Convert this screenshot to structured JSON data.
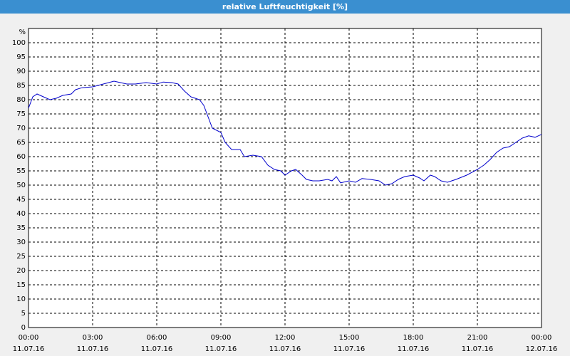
{
  "chart_data": {
    "type": "line",
    "title": "relative Luftfeuchtigkeit [%]",
    "y_label": "%",
    "x": [
      0,
      0.2,
      0.4,
      0.7,
      1,
      1.3,
      1.6,
      2,
      2.2,
      2.5,
      3,
      3.5,
      4,
      4.3,
      4.6,
      5,
      5.5,
      6,
      6.3,
      6.7,
      7,
      7.3,
      7.6,
      8,
      8.2,
      8.4,
      8.6,
      9,
      9.2,
      9.5,
      9.9,
      10.1,
      10.5,
      10.9,
      11.2,
      11.5,
      11.8,
      12,
      12.3,
      12.5,
      12.8,
      13,
      13.3,
      13.6,
      14,
      14.2,
      14.4,
      14.6,
      15,
      15.3,
      15.6,
      16,
      16.4,
      16.7,
      17,
      17.3,
      17.6,
      18,
      18.3,
      18.5,
      18.8,
      19,
      19.3,
      19.6,
      20,
      20.5,
      21,
      21.3,
      21.6,
      21.9,
      22.2,
      22.5,
      22.8,
      23.1,
      23.4,
      23.7,
      24
    ],
    "series": [
      {
        "color": "#0000cc",
        "values": [
          77,
          81,
          82,
          81,
          80,
          80.5,
          81.5,
          82,
          83.5,
          84.2,
          84.5,
          85.5,
          86.5,
          86,
          85.5,
          85.5,
          86,
          85.5,
          86.2,
          86,
          85.5,
          83,
          81,
          80,
          78,
          74,
          70,
          68.5,
          65,
          62.5,
          62.5,
          60,
          60.5,
          60,
          57,
          55.5,
          55,
          53.5,
          55,
          55.5,
          53.5,
          52,
          51.5,
          51.5,
          52,
          51.5,
          53,
          50.8,
          51.5,
          51,
          52.3,
          52,
          51.5,
          50,
          50.5,
          52,
          53,
          53.5,
          52.5,
          51.5,
          53.5,
          53,
          51.5,
          51,
          52,
          53.5,
          55.5,
          57,
          59,
          61.5,
          63,
          63.5,
          65,
          66.5,
          67.3,
          66.8,
          67.8
        ]
      }
    ],
    "xlim": [
      0,
      24
    ],
    "xticks": [
      {
        "value": 0,
        "label": "00:00",
        "date": "11.07.16"
      },
      {
        "value": 3,
        "label": "03:00",
        "date": "11.07.16"
      },
      {
        "value": 6,
        "label": "06:00",
        "date": "11.07.16"
      },
      {
        "value": 9,
        "label": "09:00",
        "date": "11.07.16"
      },
      {
        "value": 12,
        "label": "12:00",
        "date": "11.07.16"
      },
      {
        "value": 15,
        "label": "15:00",
        "date": "11.07.16"
      },
      {
        "value": 18,
        "label": "18:00",
        "date": "11.07.16"
      },
      {
        "value": 21,
        "label": "21:00",
        "date": "11.07.16"
      },
      {
        "value": 24,
        "label": "00:00",
        "date": "12.07.16"
      }
    ],
    "ylim": [
      0,
      105
    ],
    "yticks": [
      0,
      5,
      10,
      15,
      20,
      25,
      30,
      35,
      40,
      45,
      50,
      55,
      60,
      65,
      70,
      75,
      80,
      85,
      90,
      95,
      100
    ],
    "grid": true
  }
}
